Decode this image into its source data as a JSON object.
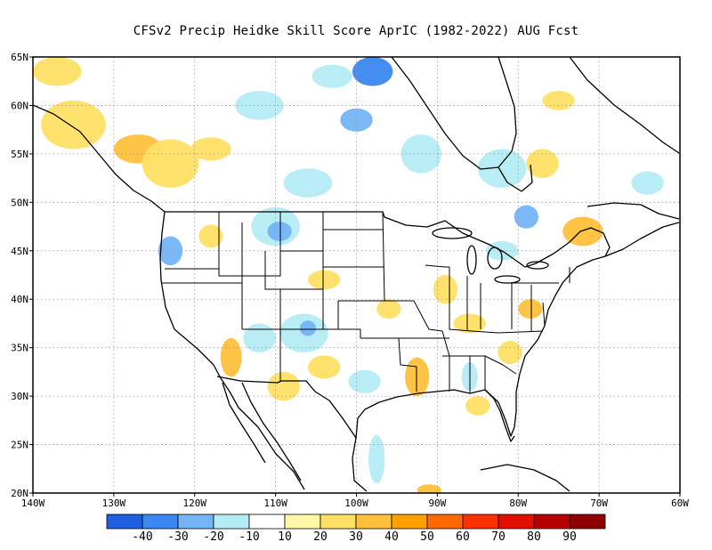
{
  "title": "CFSv2 Precip Heidke Skill Score AprIC (1982-2022) AUG Fcst",
  "map": {
    "lon_range": [
      -140,
      -60
    ],
    "lat_range": [
      20,
      65
    ],
    "lat_ticks": [
      {
        "value": 65,
        "label": "65N"
      },
      {
        "value": 60,
        "label": "60N"
      },
      {
        "value": 55,
        "label": "55N"
      },
      {
        "value": 50,
        "label": "50N"
      },
      {
        "value": 45,
        "label": "45N"
      },
      {
        "value": 40,
        "label": "40N"
      },
      {
        "value": 35,
        "label": "35N"
      },
      {
        "value": 30,
        "label": "30N"
      },
      {
        "value": 25,
        "label": "25N"
      },
      {
        "value": 20,
        "label": "20N"
      }
    ],
    "lon_ticks": [
      {
        "value": -140,
        "label": "140W"
      },
      {
        "value": -130,
        "label": "130W"
      },
      {
        "value": -120,
        "label": "120W"
      },
      {
        "value": -110,
        "label": "110W"
      },
      {
        "value": -100,
        "label": "100W"
      },
      {
        "value": -90,
        "label": "90W"
      },
      {
        "value": -80,
        "label": "80W"
      },
      {
        "value": -70,
        "label": "70W"
      },
      {
        "value": -60,
        "label": "60W"
      }
    ],
    "grid": true
  },
  "colorbar": {
    "colors": [
      "#1f5fe0",
      "#3b88f0",
      "#74b4f5",
      "#b4ecf5",
      "#ffffff",
      "#fff7a8",
      "#ffe066",
      "#ffc03c",
      "#ffa000",
      "#ff6a00",
      "#ff3000",
      "#e01000",
      "#b40000",
      "#8c0000"
    ],
    "labels": [
      "-40",
      "-30",
      "-20",
      "-10",
      "10",
      "20",
      "30",
      "40",
      "50",
      "60",
      "70",
      "80",
      "90"
    ]
  },
  "skill_patches": [
    {
      "lon": -137,
      "lat": 63.5,
      "rx": 3,
      "ry": 1.5,
      "level": 20
    },
    {
      "lon": -135,
      "lat": 58,
      "rx": 4,
      "ry": 2.5,
      "level": 20
    },
    {
      "lon": -127,
      "lat": 55.5,
      "rx": 3,
      "ry": 1.5,
      "level": 30
    },
    {
      "lon": -123,
      "lat": 54,
      "rx": 3.5,
      "ry": 2.5,
      "level": 20
    },
    {
      "lon": -118,
      "lat": 55.5,
      "rx": 2.5,
      "ry": 1.2,
      "level": 20
    },
    {
      "lon": -112,
      "lat": 60,
      "rx": 3,
      "ry": 1.5,
      "level": -10
    },
    {
      "lon": -103,
      "lat": 63,
      "rx": 2.5,
      "ry": 1.2,
      "level": -10
    },
    {
      "lon": -98,
      "lat": 63.5,
      "rx": 2.5,
      "ry": 1.5,
      "level": -30
    },
    {
      "lon": -100,
      "lat": 58.5,
      "rx": 2,
      "ry": 1.2,
      "level": -20
    },
    {
      "lon": -92,
      "lat": 55,
      "rx": 2.5,
      "ry": 2,
      "level": -10
    },
    {
      "lon": -106,
      "lat": 52,
      "rx": 3,
      "ry": 1.5,
      "level": -10
    },
    {
      "lon": -110,
      "lat": 47.5,
      "rx": 3,
      "ry": 2,
      "level": -10
    },
    {
      "lon": -109.5,
      "lat": 47,
      "rx": 1.5,
      "ry": 1,
      "level": -20
    },
    {
      "lon": -118,
      "lat": 46.5,
      "rx": 1.5,
      "ry": 1.2,
      "level": 20
    },
    {
      "lon": -123,
      "lat": 45,
      "rx": 1.5,
      "ry": 1.5,
      "level": -20
    },
    {
      "lon": -104,
      "lat": 42,
      "rx": 2,
      "ry": 1,
      "level": 20
    },
    {
      "lon": -106.5,
      "lat": 36.5,
      "rx": 3,
      "ry": 2,
      "level": -10
    },
    {
      "lon": -106,
      "lat": 37,
      "rx": 1,
      "ry": 0.8,
      "level": -20
    },
    {
      "lon": -112,
      "lat": 36,
      "rx": 2,
      "ry": 1.5,
      "level": -10
    },
    {
      "lon": -115.5,
      "lat": 34,
      "rx": 1.3,
      "ry": 2,
      "level": 30
    },
    {
      "lon": -109,
      "lat": 31,
      "rx": 2,
      "ry": 1.5,
      "level": 20
    },
    {
      "lon": -104,
      "lat": 33,
      "rx": 2,
      "ry": 1.2,
      "level": 20
    },
    {
      "lon": -99,
      "lat": 31.5,
      "rx": 2,
      "ry": 1.2,
      "level": -10
    },
    {
      "lon": -96,
      "lat": 39,
      "rx": 1.5,
      "ry": 1,
      "level": 20
    },
    {
      "lon": -92.5,
      "lat": 32,
      "rx": 1.5,
      "ry": 2,
      "level": 30
    },
    {
      "lon": -89,
      "lat": 41,
      "rx": 1.5,
      "ry": 1.5,
      "level": 20
    },
    {
      "lon": -86,
      "lat": 37.5,
      "rx": 2,
      "ry": 1,
      "level": 20
    },
    {
      "lon": -82,
      "lat": 45,
      "rx": 2,
      "ry": 1,
      "level": -10
    },
    {
      "lon": -78.5,
      "lat": 39,
      "rx": 1.5,
      "ry": 1,
      "level": 30
    },
    {
      "lon": -81,
      "lat": 34.5,
      "rx": 1.5,
      "ry": 1.2,
      "level": 20
    },
    {
      "lon": -86,
      "lat": 32,
      "rx": 1,
      "ry": 1.5,
      "level": -10
    },
    {
      "lon": -82,
      "lat": 53.5,
      "rx": 3,
      "ry": 2,
      "level": -10
    },
    {
      "lon": -77,
      "lat": 54,
      "rx": 2,
      "ry": 1.5,
      "level": 20
    },
    {
      "lon": -79,
      "lat": 48.5,
      "rx": 1.5,
      "ry": 1.2,
      "level": -20
    },
    {
      "lon": -72,
      "lat": 47,
      "rx": 2.5,
      "ry": 1.5,
      "level": 30
    },
    {
      "lon": -75,
      "lat": 60.5,
      "rx": 2,
      "ry": 1,
      "level": 20
    },
    {
      "lon": -64,
      "lat": 52,
      "rx": 2,
      "ry": 1.2,
      "level": -10
    },
    {
      "lon": -97.5,
      "lat": 23.5,
      "rx": 1,
      "ry": 2.5,
      "level": -10
    },
    {
      "lon": -91,
      "lat": 20.3,
      "rx": 1.5,
      "ry": 0.6,
      "level": 30
    },
    {
      "lon": -85,
      "lat": 29,
      "rx": 1.5,
      "ry": 1,
      "level": 20
    }
  ]
}
